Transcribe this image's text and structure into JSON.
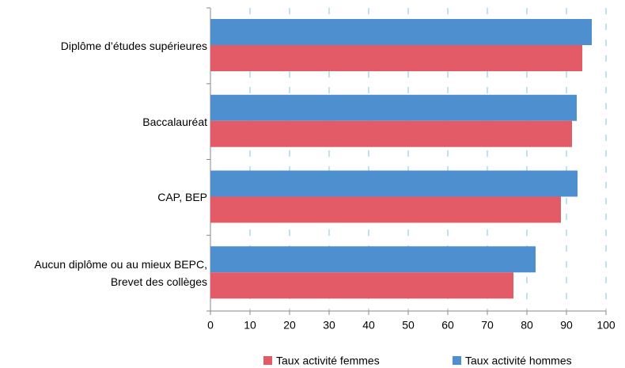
{
  "chart_data": {
    "type": "hbar",
    "categories": [
      "Diplôme d’études supérieures",
      "Baccalauréat",
      "CAP, BEP",
      "Aucun diplôme ou au mieux BEPC,\nBrevet des collèges"
    ],
    "series": [
      {
        "name": "Taux activité femmes",
        "color": "#e35b66",
        "values": [
          94,
          91.4,
          88.6,
          76.6
        ]
      },
      {
        "name": "Taux activité hommes",
        "color": "#4d8fcf",
        "values": [
          96.4,
          92.6,
          92.8,
          82.2
        ]
      }
    ],
    "xlim": [
      0,
      100
    ],
    "xticks": [
      0,
      10,
      20,
      30,
      40,
      50,
      60,
      70,
      80,
      90,
      100
    ],
    "grid": true,
    "legend": "bottom"
  }
}
